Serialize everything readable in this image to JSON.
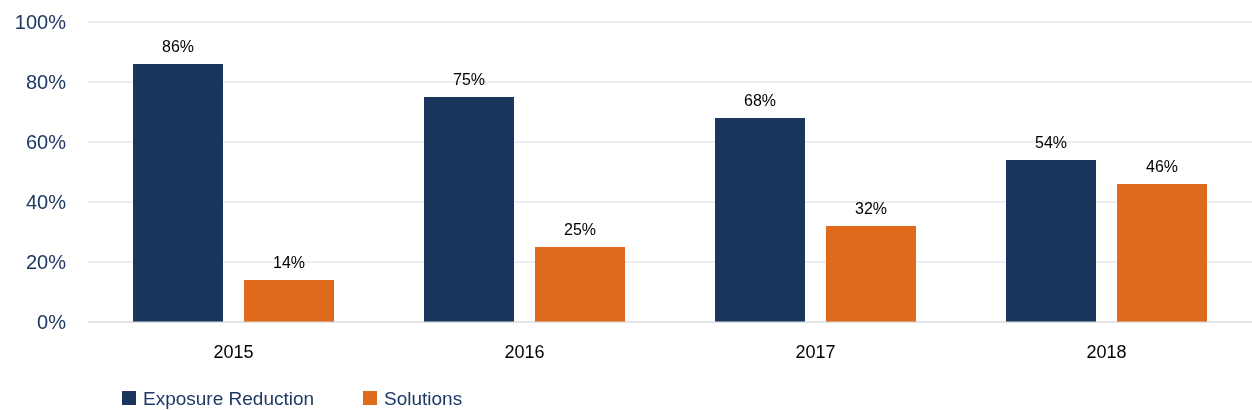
{
  "chart_data": {
    "type": "bar",
    "categories": [
      "2015",
      "2016",
      "2017",
      "2018"
    ],
    "series": [
      {
        "name": "Exposure Reduction",
        "color": "#1b365d",
        "values": [
          86,
          75,
          68,
          54
        ],
        "value_labels": [
          "86%",
          "75%",
          "68%",
          "54%"
        ]
      },
      {
        "name": "Solutions",
        "color": "#e06a1b",
        "values": [
          14,
          25,
          32,
          46
        ],
        "value_labels": [
          "14%",
          "25%",
          "32%",
          "46%"
        ]
      }
    ],
    "ylim": [
      0,
      100
    ],
    "yticks": [
      {
        "value": 0,
        "label": "0%"
      },
      {
        "value": 20,
        "label": "20%"
      },
      {
        "value": 40,
        "label": "40%"
      },
      {
        "value": 60,
        "label": "60%"
      },
      {
        "value": 80,
        "label": "80%"
      },
      {
        "value": 100,
        "label": "100%"
      }
    ],
    "grid": "y",
    "legend": "bottom left"
  }
}
